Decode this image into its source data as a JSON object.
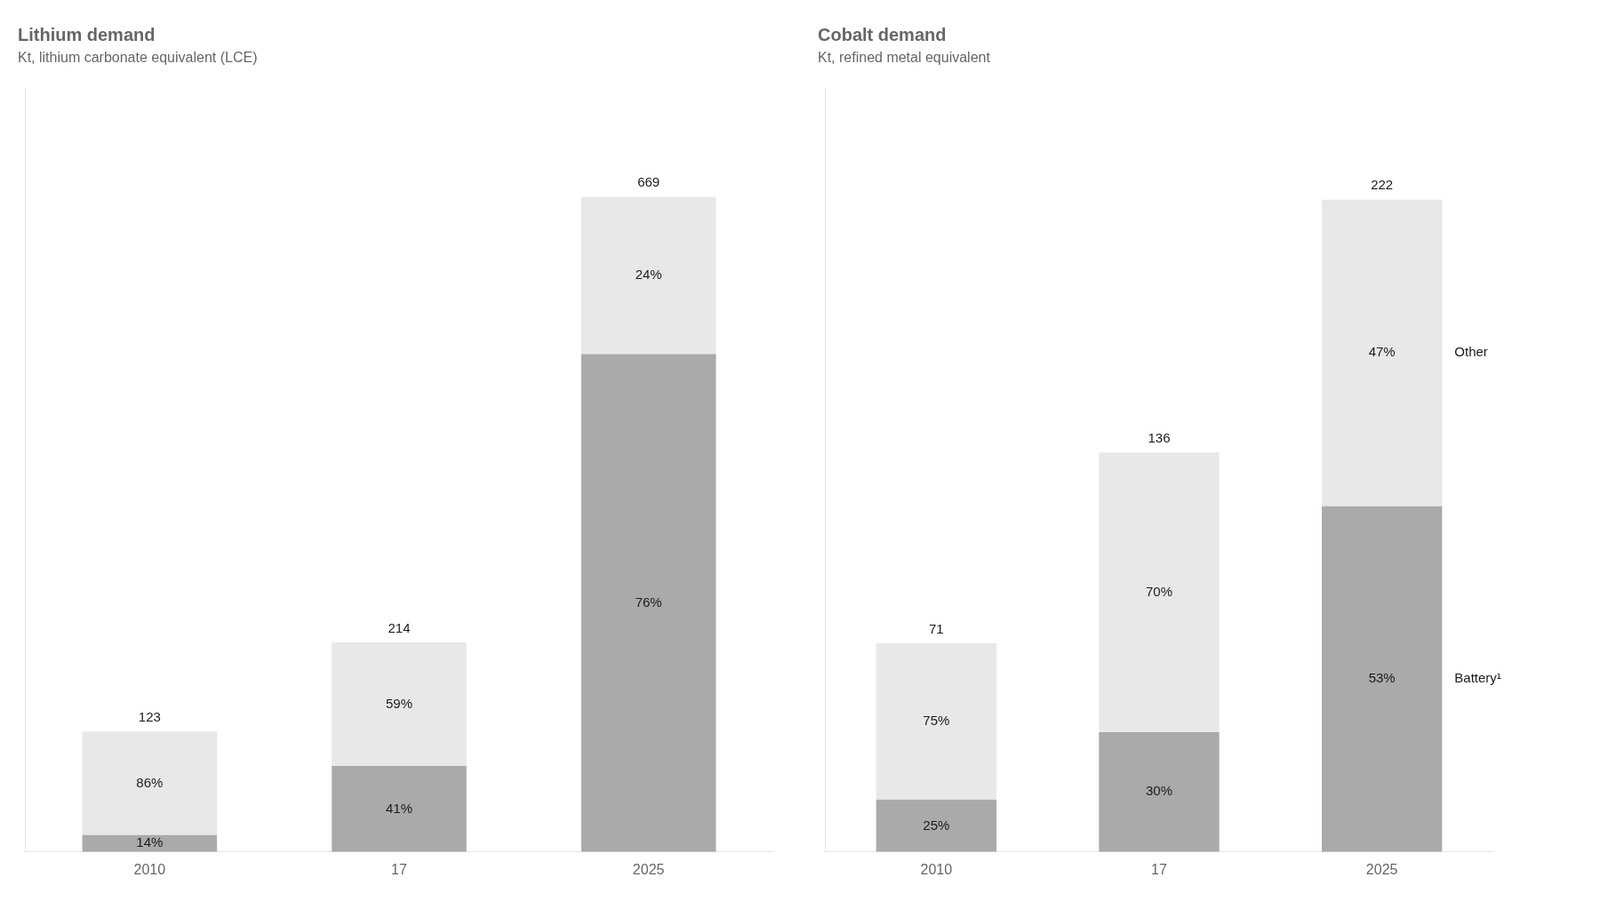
{
  "chart_data": [
    {
      "type": "bar",
      "title": "Lithium demand",
      "subtitle": "Kt, lithium carbonate equivalent (LCE)",
      "categories": [
        "2010",
        "17",
        "2025"
      ],
      "series": [
        {
          "name": "Battery¹",
          "color": "#aaaaaa",
          "values": [
            17.22,
            87.74,
            508.44
          ],
          "shares": [
            14,
            41,
            76
          ],
          "share_labels": [
            "14%",
            "41%",
            "76%"
          ]
        },
        {
          "name": "Other",
          "color": "#e8e8e8",
          "values": [
            105.78,
            126.26,
            160.56
          ],
          "shares": [
            86,
            59,
            24
          ],
          "share_labels": [
            "86%",
            "59%",
            "24%"
          ]
        }
      ],
      "totals": [
        123,
        214,
        669
      ],
      "ylim": [
        0,
        780
      ],
      "stacked": true,
      "grid": false,
      "legend": false,
      "tick_labels": "x"
    },
    {
      "type": "bar",
      "title": "Cobalt demand",
      "subtitle": "Kt, refined metal equivalent",
      "categories": [
        "2010",
        "17",
        "2025"
      ],
      "series": [
        {
          "name": "Battery¹",
          "color": "#aaaaaa",
          "values": [
            17.75,
            40.8,
            117.66
          ],
          "shares": [
            25,
            30,
            53
          ],
          "share_labels": [
            "25%",
            "30%",
            "53%"
          ]
        },
        {
          "name": "Other",
          "color": "#e8e8e8",
          "values": [
            53.25,
            95.2,
            104.34
          ],
          "shares": [
            75,
            70,
            47
          ],
          "share_labels": [
            "75%",
            "70%",
            "47%"
          ]
        }
      ],
      "totals": [
        71,
        136,
        222
      ],
      "ylim": [
        0,
        260
      ],
      "stacked": true,
      "grid": false,
      "legend": "right",
      "tick_labels": "x"
    }
  ]
}
